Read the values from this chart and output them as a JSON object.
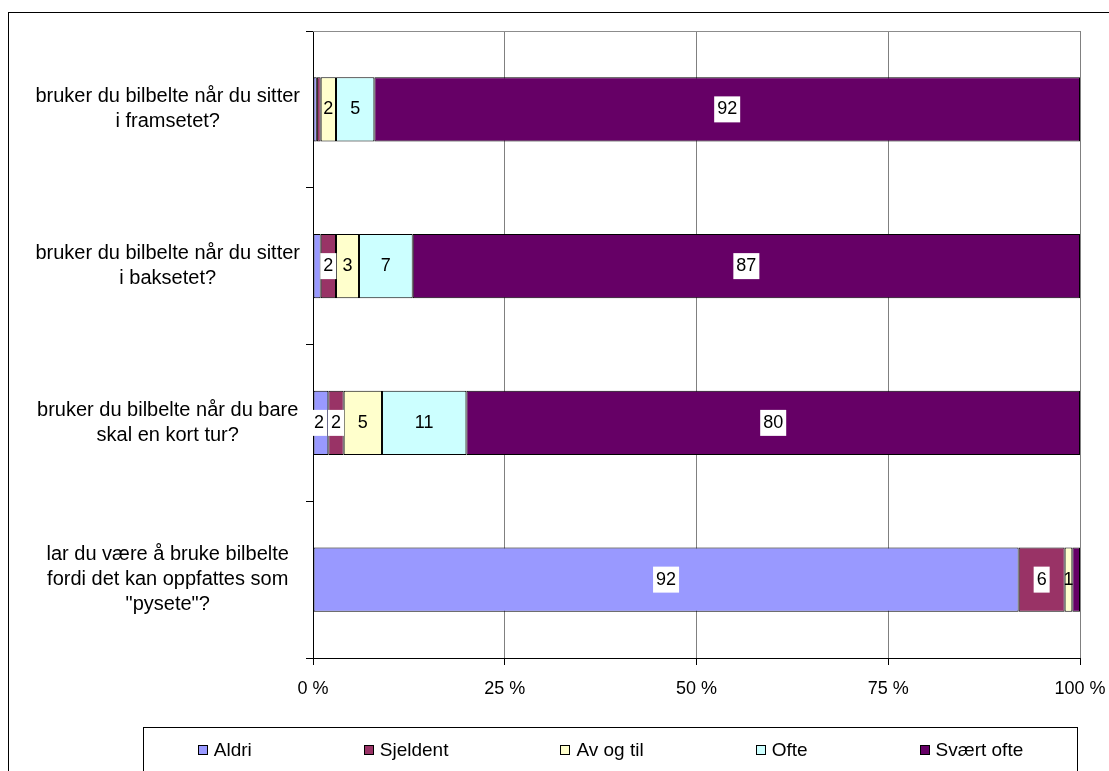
{
  "chart_data": {
    "type": "bar",
    "orientation": "horizontal",
    "stacked": true,
    "categories": [
      "bruker du bilbelte når du sitter i framsetet?",
      "bruker du bilbelte når du sitter i baksetet?",
      "bruker du bilbelte når du bare skal en kort tur?",
      "lar du være å bruke bilbelte fordi det kan oppfattes som \"pysete\"?"
    ],
    "series": [
      {
        "name": "Aldri",
        "color": "#9999ff",
        "values": [
          0.5,
          1,
          2,
          92
        ],
        "value_labels": [
          null,
          null,
          "2",
          "92"
        ]
      },
      {
        "name": "Sjeldent",
        "color": "#993366",
        "values": [
          0.5,
          2,
          2,
          6
        ],
        "value_labels": [
          null,
          "2",
          "2",
          "6"
        ]
      },
      {
        "name": "Av og til",
        "color": "#ffffcc",
        "values": [
          2,
          3,
          5,
          1
        ],
        "value_labels": [
          "2",
          "3",
          "5",
          "1"
        ]
      },
      {
        "name": "Ofte",
        "color": "#ccffff",
        "values": [
          5,
          7,
          11,
          null
        ],
        "value_labels": [
          "5",
          "7",
          "11",
          null
        ]
      },
      {
        "name": "Svært ofte",
        "color": "#660066",
        "values": [
          92,
          87,
          80,
          1
        ],
        "value_labels": [
          "92",
          "87",
          "80",
          null
        ]
      }
    ],
    "xlim": [
      0,
      100
    ],
    "xticks": [
      {
        "value": 0,
        "label": "0 %"
      },
      {
        "value": 25,
        "label": "25 %"
      },
      {
        "value": 50,
        "label": "50 %"
      },
      {
        "value": 75,
        "label": "75 %"
      },
      {
        "value": 100,
        "label": "100 %"
      }
    ],
    "grid": "x",
    "legend": "bottom"
  }
}
